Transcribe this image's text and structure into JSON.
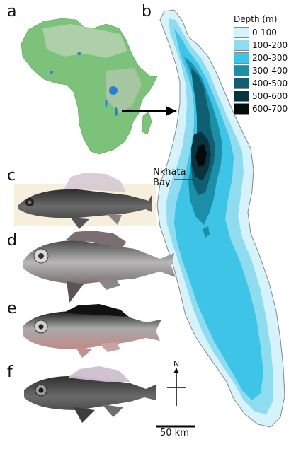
{
  "panels": {
    "a": "a",
    "b": "b",
    "c": "c",
    "d": "d",
    "e": "e",
    "f": "f"
  },
  "legend": {
    "title": "Depth (m)",
    "items": [
      {
        "label": "0-100",
        "color": "#d6f3fb"
      },
      {
        "label": "100-200",
        "color": "#8fdcf0"
      },
      {
        "label": "200-300",
        "color": "#3ec4e6"
      },
      {
        "label": "300-400",
        "color": "#1a8fa7"
      },
      {
        "label": "400-500",
        "color": "#0f5e72"
      },
      {
        "label": "500-600",
        "color": "#0a3340"
      },
      {
        "label": "600-700",
        "color": "#050a0c"
      }
    ]
  },
  "place": {
    "line1": "Nkhata",
    "line2": "Bay"
  },
  "scale_bar": {
    "label": "50 km"
  },
  "north": {
    "label": "N"
  },
  "colors": {
    "land": "#6fb86a",
    "land_light": "#c8d8c0",
    "water": "#2a7fd0",
    "outline": "#888888",
    "arrow": "#000000"
  }
}
